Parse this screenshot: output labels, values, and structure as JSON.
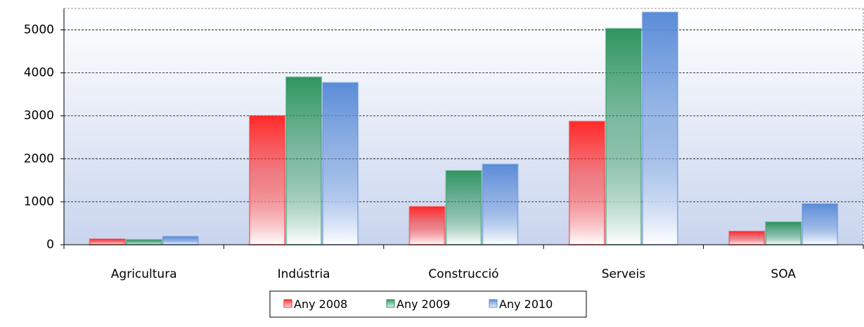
{
  "chart_data": {
    "type": "bar",
    "categories": [
      "Agricultura",
      "Indústria",
      "Construcció",
      "Serveis",
      "SOA"
    ],
    "series": [
      {
        "name": "Any 2008",
        "color": "#ff2a2a",
        "values": [
          130,
          3000,
          885,
          2870,
          310
        ]
      },
      {
        "name": "Any 2009",
        "color": "#2f9560",
        "values": [
          115,
          3900,
          1720,
          5030,
          525
        ]
      },
      {
        "name": "Any 2010",
        "color": "#5a8cd8",
        "values": [
          190,
          3770,
          1870,
          5410,
          950
        ]
      }
    ],
    "ylim": [
      0,
      5500
    ],
    "yticks": [
      0,
      1000,
      2000,
      3000,
      4000,
      5000
    ],
    "grid": true,
    "legend": "bottom"
  }
}
